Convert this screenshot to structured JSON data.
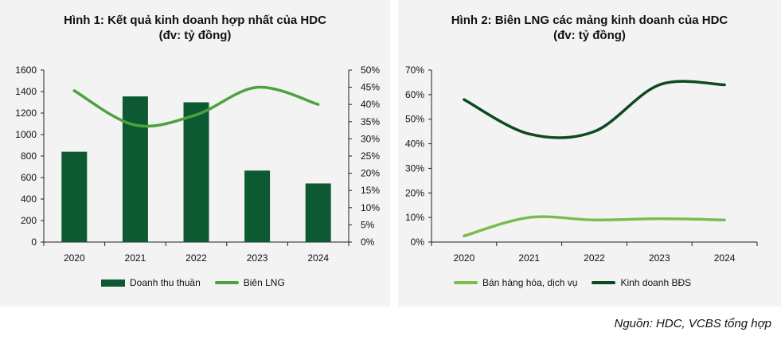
{
  "chart_data": [
    {
      "type": "bar+line",
      "title_line1": "Hình 1: Kết quả kinh doanh hợp nhất của HDC",
      "title_line2": "(đv: tỷ đồng)",
      "categories": [
        "2020",
        "2021",
        "2022",
        "2023",
        "2024"
      ],
      "series": [
        {
          "name": "Doanh thu thuần",
          "kind": "bar",
          "axis": "left",
          "color": "#0d5a32",
          "values": [
            840,
            1355,
            1300,
            665,
            545
          ]
        },
        {
          "name": "Biên LNG",
          "kind": "line",
          "axis": "right",
          "color": "#4aa33d",
          "values": [
            44,
            34,
            37,
            45,
            40
          ]
        }
      ],
      "ylim_left": [
        0,
        1600
      ],
      "yticks_left": [
        "0",
        "200",
        "400",
        "600",
        "800",
        "1000",
        "1200",
        "1400",
        "1600"
      ],
      "ylim_right": [
        0,
        50
      ],
      "yticks_right": [
        "0%",
        "5%",
        "10%",
        "15%",
        "20%",
        "25%",
        "30%",
        "35%",
        "40%",
        "45%",
        "50%"
      ],
      "legend_position": "bottom"
    },
    {
      "type": "line",
      "title_line1": "Hình 2: Biên LNG các mảng kinh doanh của HDC",
      "title_line2": "(đv: tỷ đồng)",
      "categories": [
        "2020",
        "2021",
        "2022",
        "2023",
        "2024"
      ],
      "series": [
        {
          "name": "Bán hàng hóa, dịch vụ",
          "color": "#7cbc4f",
          "values": [
            2.5,
            10,
            9,
            9.5,
            9
          ]
        },
        {
          "name": "Kinh doanh BĐS",
          "color": "#0d4a22",
          "values": [
            58,
            44,
            45,
            64,
            64
          ]
        }
      ],
      "ylim": [
        0,
        70
      ],
      "yticks": [
        "0%",
        "10%",
        "20%",
        "30%",
        "40%",
        "50%",
        "60%",
        "70%"
      ],
      "legend_position": "bottom"
    }
  ],
  "source_note": "Nguồn: HDC, VCBS tổng hợp"
}
